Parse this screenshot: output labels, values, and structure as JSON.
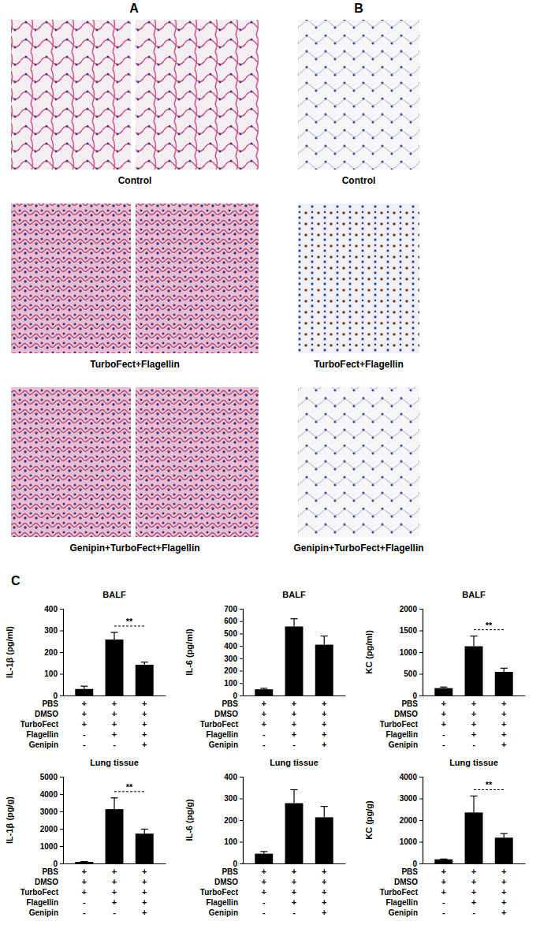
{
  "panels": {
    "A": {
      "label": "A",
      "captions": [
        "Control",
        "TurboFect+Flagellin",
        "Genipin+TurboFect+Flagellin"
      ]
    },
    "B": {
      "label": "B",
      "captions": [
        "Control",
        "TurboFect+Flagellin",
        "Genipin+TurboFect+Flagellin"
      ]
    },
    "C": {
      "label": "C"
    }
  },
  "chart_data": [
    {
      "type": "bar",
      "title": "BALF",
      "y_label": "IL-1β (pg/ml)",
      "categories": [
        null,
        null,
        null
      ],
      "values": [
        30,
        258,
        142
      ],
      "errors": [
        13,
        33,
        12
      ],
      "color": "#000000",
      "ylim": [
        0,
        400
      ],
      "yticks": [
        0,
        100,
        200,
        300,
        400
      ],
      "conditions": [
        {
          "name": "PBS",
          "marks": [
            "+",
            "+",
            "+"
          ]
        },
        {
          "name": "DMSO",
          "marks": [
            "+",
            "+",
            "+"
          ]
        },
        {
          "name": "TurboFect",
          "marks": [
            "+",
            "+",
            "+"
          ]
        },
        {
          "name": "Flagellin",
          "marks": [
            "-",
            "+",
            "+"
          ]
        },
        {
          "name": "Genipin",
          "marks": [
            "-",
            "-",
            "+"
          ]
        }
      ],
      "annotations": [
        {
          "text": "**",
          "between": [
            1,
            2
          ]
        }
      ]
    },
    {
      "type": "bar",
      "title": "BALF",
      "y_label": "IL-6 (pg/ml)",
      "categories": [
        null,
        null,
        null
      ],
      "values": [
        50,
        557,
        410
      ],
      "errors": [
        8,
        62,
        70
      ],
      "color": "#000000",
      "ylim": [
        0,
        700
      ],
      "yticks": [
        0,
        100,
        200,
        300,
        400,
        500,
        600,
        700
      ],
      "conditions": [
        {
          "name": "PBS",
          "marks": [
            "+",
            "+",
            "+"
          ]
        },
        {
          "name": "DMSO",
          "marks": [
            "+",
            "+",
            "+"
          ]
        },
        {
          "name": "TurboFect",
          "marks": [
            "+",
            "+",
            "+"
          ]
        },
        {
          "name": "Flagellin",
          "marks": [
            "-",
            "+",
            "+"
          ]
        },
        {
          "name": "Genipin",
          "marks": [
            "-",
            "-",
            "+"
          ]
        }
      ],
      "annotations": []
    },
    {
      "type": "bar",
      "title": "BALF",
      "y_label": "KC (pg/ml)",
      "categories": [
        null,
        null,
        null
      ],
      "values": [
        170,
        1135,
        545
      ],
      "errors": [
        25,
        235,
        85
      ],
      "color": "#000000",
      "ylim": [
        0,
        2000
      ],
      "yticks": [
        0,
        500,
        1000,
        1500,
        2000
      ],
      "conditions": [
        {
          "name": "PBS",
          "marks": [
            "+",
            "+",
            "+"
          ]
        },
        {
          "name": "DMSO",
          "marks": [
            "+",
            "+",
            "+"
          ]
        },
        {
          "name": "TurboFect",
          "marks": [
            "+",
            "+",
            "+"
          ]
        },
        {
          "name": "Flagellin",
          "marks": [
            "-",
            "+",
            "+"
          ]
        },
        {
          "name": "Genipin",
          "marks": [
            "-",
            "-",
            "+"
          ]
        }
      ],
      "annotations": [
        {
          "text": "**",
          "between": [
            1,
            2
          ]
        }
      ]
    },
    {
      "type": "bar",
      "title": "Lung tissue",
      "y_label": "IL-1β  (pg/g)",
      "categories": [
        null,
        null,
        null
      ],
      "values": [
        90,
        3130,
        1720
      ],
      "errors": [
        15,
        650,
        260
      ],
      "color": "#000000",
      "ylim": [
        0,
        5000
      ],
      "yticks": [
        0,
        1000,
        2000,
        3000,
        4000,
        5000
      ],
      "conditions": [
        {
          "name": "PBS",
          "marks": [
            "+",
            "+",
            "+"
          ]
        },
        {
          "name": "DMSO",
          "marks": [
            "+",
            "+",
            "+"
          ]
        },
        {
          "name": "TurboFect",
          "marks": [
            "+",
            "+",
            "+"
          ]
        },
        {
          "name": "Flagellin",
          "marks": [
            "-",
            "+",
            "+"
          ]
        },
        {
          "name": "Genipin",
          "marks": [
            "-",
            "-",
            "+"
          ]
        }
      ],
      "annotations": [
        {
          "text": "**",
          "between": [
            1,
            2
          ]
        }
      ]
    },
    {
      "type": "bar",
      "title": "Lung tissue",
      "y_label": "IL-6 (pg/g)",
      "categories": [
        null,
        null,
        null
      ],
      "values": [
        45,
        278,
        213
      ],
      "errors": [
        10,
        62,
        50
      ],
      "color": "#000000",
      "ylim": [
        0,
        400
      ],
      "yticks": [
        0,
        100,
        200,
        300,
        400
      ],
      "conditions": [
        {
          "name": "PBS",
          "marks": [
            "+",
            "+",
            "+"
          ]
        },
        {
          "name": "DMSO",
          "marks": [
            "+",
            "+",
            "+"
          ]
        },
        {
          "name": "TurboFect",
          "marks": [
            "+",
            "+",
            "+"
          ]
        },
        {
          "name": "Flagellin",
          "marks": [
            "-",
            "+",
            "+"
          ]
        },
        {
          "name": "Genipin",
          "marks": [
            "-",
            "-",
            "+"
          ]
        }
      ],
      "annotations": []
    },
    {
      "type": "bar",
      "title": "Lung tissue",
      "y_label": "KC (pg/g)",
      "categories": [
        null,
        null,
        null
      ],
      "values": [
        190,
        2350,
        1190
      ],
      "errors": [
        15,
        760,
        190
      ],
      "color": "#000000",
      "ylim": [
        0,
        4000
      ],
      "yticks": [
        0,
        1000,
        2000,
        3000,
        4000
      ],
      "conditions": [
        {
          "name": "PBS",
          "marks": [
            "+",
            "+",
            "+"
          ]
        },
        {
          "name": "DMSO",
          "marks": [
            "+",
            "+",
            "+"
          ]
        },
        {
          "name": "TurboFect",
          "marks": [
            "+",
            "+",
            "+"
          ]
        },
        {
          "name": "Flagellin",
          "marks": [
            "-",
            "+",
            "+"
          ]
        },
        {
          "name": "Genipin",
          "marks": [
            "-",
            "-",
            "+"
          ]
        }
      ],
      "annotations": [
        {
          "text": "**",
          "between": [
            1,
            2
          ]
        }
      ]
    }
  ]
}
